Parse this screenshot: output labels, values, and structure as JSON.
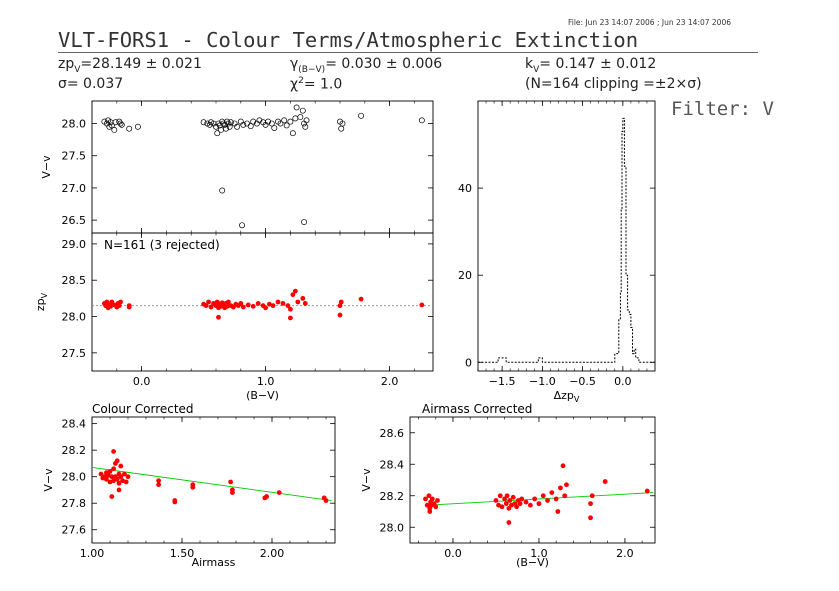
{
  "header": {
    "file_line": "File: Jun 23 14:07 2006 ; Jun 23 14:07 2006",
    "title": "VLT-FORS1 - Colour Terms/Atmospheric Extinction",
    "zp_label": "zp",
    "zp_sub": "V",
    "zp_value": "=28.149 ± 0.021",
    "sigma_text": "σ= 0.037",
    "gamma_label": "γ",
    "gamma_sub": "(B−V)",
    "gamma_value": "= 0.030 ± 0.006",
    "chi_label": "χ",
    "chi_sup": "2",
    "chi_value": "=   1.0",
    "k_label": "k",
    "k_sub": "V",
    "k_value": "= 0.147 ± 0.012",
    "clipping_text": "(N=164 clipping =±2×σ)",
    "filter_text": "Filter: V"
  },
  "colors": {
    "points": "#ff0000",
    "fit": "#00cc00",
    "zp_line": "#888888",
    "axes": "#000000"
  },
  "chart_data": [
    {
      "id": "panel-a",
      "type": "scatter",
      "ylabel": "V−v",
      "xlim": [
        -0.4,
        2.35
      ],
      "ylim": [
        26.3,
        28.35
      ],
      "yticks": [
        26.5,
        27.0,
        27.5,
        28.0
      ],
      "xticks": [
        0.0,
        1.0,
        2.0
      ],
      "marker": "hollow",
      "points": [
        [
          -0.3,
          28.03
        ],
        [
          -0.28,
          28.0
        ],
        [
          -0.27,
          28.05
        ],
        [
          -0.26,
          27.95
        ],
        [
          -0.25,
          28.02
        ],
        [
          -0.24,
          27.97
        ],
        [
          -0.22,
          27.9
        ],
        [
          -0.21,
          28.02
        ],
        [
          -0.18,
          28.03
        ],
        [
          -0.17,
          28.0
        ],
        [
          -0.16,
          27.98
        ],
        [
          -0.1,
          27.92
        ],
        [
          -0.03,
          27.95
        ],
        [
          0.5,
          28.02
        ],
        [
          0.53,
          28.0
        ],
        [
          0.55,
          27.98
        ],
        [
          0.56,
          28.02
        ],
        [
          0.58,
          28.0
        ],
        [
          0.6,
          27.95
        ],
        [
          0.61,
          27.85
        ],
        [
          0.62,
          28.0
        ],
        [
          0.63,
          27.97
        ],
        [
          0.64,
          27.9
        ],
        [
          0.65,
          28.03
        ],
        [
          0.66,
          28.0
        ],
        [
          0.67,
          27.98
        ],
        [
          0.68,
          27.92
        ],
        [
          0.69,
          28.03
        ],
        [
          0.7,
          28.0
        ],
        [
          0.71,
          27.95
        ],
        [
          0.72,
          28.02
        ],
        [
          0.75,
          28.0
        ],
        [
          0.77,
          27.95
        ],
        [
          0.8,
          28.03
        ],
        [
          0.82,
          27.98
        ],
        [
          0.85,
          28.0
        ],
        [
          0.88,
          27.96
        ],
        [
          0.9,
          28.03
        ],
        [
          0.93,
          28.0
        ],
        [
          0.95,
          28.05
        ],
        [
          0.98,
          28.02
        ],
        [
          1.0,
          27.98
        ],
        [
          1.02,
          28.03
        ],
        [
          1.05,
          28.0
        ],
        [
          1.07,
          27.93
        ],
        [
          1.1,
          28.03
        ],
        [
          1.12,
          28.0
        ],
        [
          1.15,
          28.05
        ],
        [
          1.17,
          27.97
        ],
        [
          1.2,
          28.03
        ],
        [
          1.22,
          27.85
        ],
        [
          1.24,
          28.08
        ],
        [
          1.28,
          28.1
        ],
        [
          1.31,
          28.0
        ],
        [
          1.32,
          27.95
        ],
        [
          1.33,
          28.05
        ],
        [
          1.6,
          28.03
        ],
        [
          1.61,
          27.92
        ],
        [
          1.62,
          28.0
        ],
        [
          1.77,
          28.12
        ],
        [
          2.26,
          28.05
        ],
        [
          1.3,
          28.2
        ],
        [
          1.25,
          28.25
        ],
        [
          0.65,
          26.96
        ],
        [
          0.81,
          26.42
        ],
        [
          1.31,
          26.47
        ]
      ]
    },
    {
      "id": "panel-b",
      "type": "scatter",
      "ylabel": "zp",
      "ylabel_sub": "V",
      "xlabel": "(B−V)",
      "annotation": "N=161 (3 rejected)",
      "xlim": [
        -0.4,
        2.35
      ],
      "ylim": [
        27.25,
        29.15
      ],
      "yticks": [
        27.5,
        28.0,
        28.5,
        29.0
      ],
      "xticks": [
        0.0,
        1.0,
        2.0
      ],
      "xticklabels": [
        "0.0",
        "1.0",
        "2.0"
      ],
      "zp_line": 28.149,
      "marker": "filled",
      "points": [
        [
          -0.3,
          28.18
        ],
        [
          -0.29,
          28.15
        ],
        [
          -0.28,
          28.2
        ],
        [
          -0.27,
          28.12
        ],
        [
          -0.26,
          28.17
        ],
        [
          -0.25,
          28.14
        ],
        [
          -0.24,
          28.2
        ],
        [
          -0.22,
          28.16
        ],
        [
          -0.2,
          28.13
        ],
        [
          -0.19,
          28.18
        ],
        [
          -0.18,
          28.15
        ],
        [
          -0.17,
          28.2
        ],
        [
          -0.1,
          28.15
        ],
        [
          0.5,
          28.17
        ],
        [
          0.52,
          28.15
        ],
        [
          0.54,
          28.2
        ],
        [
          0.56,
          28.13
        ],
        [
          0.58,
          28.18
        ],
        [
          0.6,
          28.15
        ],
        [
          0.61,
          28.2
        ],
        [
          0.62,
          28.12
        ],
        [
          0.63,
          28.17
        ],
        [
          0.64,
          28.14
        ],
        [
          0.65,
          28.19
        ],
        [
          0.66,
          28.15
        ],
        [
          0.67,
          28.12
        ],
        [
          0.68,
          28.18
        ],
        [
          0.69,
          28.14
        ],
        [
          0.7,
          28.2
        ],
        [
          0.72,
          28.15
        ],
        [
          0.74,
          28.13
        ],
        [
          0.76,
          28.17
        ],
        [
          0.78,
          28.15
        ],
        [
          0.8,
          28.18
        ],
        [
          0.82,
          28.13
        ],
        [
          0.86,
          28.16
        ],
        [
          0.9,
          28.14
        ],
        [
          0.94,
          28.18
        ],
        [
          0.98,
          28.15
        ],
        [
          1.0,
          28.12
        ],
        [
          1.03,
          28.17
        ],
        [
          1.06,
          28.15
        ],
        [
          1.1,
          28.2
        ],
        [
          1.14,
          28.18
        ],
        [
          1.18,
          28.15
        ],
        [
          1.2,
          28.1
        ],
        [
          1.22,
          28.3
        ],
        [
          1.24,
          28.35
        ],
        [
          1.26,
          28.2
        ],
        [
          1.3,
          28.25
        ],
        [
          1.32,
          28.18
        ],
        [
          1.6,
          28.15
        ],
        [
          1.61,
          28.2
        ],
        [
          1.77,
          28.24
        ],
        [
          2.26,
          28.16
        ],
        [
          1.2,
          27.98
        ],
        [
          0.62,
          27.99
        ],
        [
          1.6,
          28.02
        ],
        [
          -0.1,
          28.13
        ]
      ]
    },
    {
      "id": "panel-hist",
      "type": "bar",
      "xlabel": "Δzp",
      "xlabel_sub": "V",
      "xlim": [
        -1.8,
        0.4
      ],
      "ylim": [
        -2,
        60
      ],
      "yticks": [
        0,
        20,
        40
      ],
      "xticks": [
        -1.5,
        -1.0,
        -0.5,
        0.0
      ],
      "xticklabels": [
        "−1.5",
        "−1.0",
        "−0.5",
        "0.0"
      ],
      "histogram": [
        [
          -1.8,
          0
        ],
        [
          -1.55,
          1
        ],
        [
          -1.45,
          0
        ],
        [
          -1.05,
          1
        ],
        [
          -1.0,
          0
        ],
        [
          -0.1,
          2
        ],
        [
          -0.05,
          10
        ],
        [
          -0.03,
          16
        ],
        [
          -0.02,
          35
        ],
        [
          -0.01,
          53
        ],
        [
          0.0,
          56
        ],
        [
          0.02,
          45
        ],
        [
          0.04,
          20
        ],
        [
          0.06,
          12
        ],
        [
          0.08,
          11
        ],
        [
          0.1,
          8
        ],
        [
          0.12,
          2
        ],
        [
          0.14,
          3
        ],
        [
          0.16,
          1
        ],
        [
          0.2,
          0
        ]
      ]
    },
    {
      "id": "panel-c",
      "type": "scatter",
      "title": "Colour Corrected",
      "ylabel": "V−v",
      "xlabel": "Airmass",
      "xlim": [
        1.0,
        2.35
      ],
      "ylim": [
        27.5,
        28.45
      ],
      "yticks": [
        27.6,
        27.8,
        28.0,
        28.2,
        28.4
      ],
      "xticks": [
        1.0,
        1.5,
        2.0
      ],
      "xticklabels": [
        "1.00",
        "1.50",
        "2.00"
      ],
      "fit": [
        [
          1.0,
          28.07
        ],
        [
          2.33,
          27.82
        ]
      ],
      "marker": "filled",
      "points": [
        [
          1.05,
          28.02
        ],
        [
          1.06,
          27.99
        ],
        [
          1.07,
          28.0
        ],
        [
          1.08,
          28.03
        ],
        [
          1.08,
          27.98
        ],
        [
          1.09,
          28.01
        ],
        [
          1.1,
          27.96
        ],
        [
          1.1,
          28.04
        ],
        [
          1.11,
          28.0
        ],
        [
          1.12,
          27.97
        ],
        [
          1.12,
          28.06
        ],
        [
          1.13,
          28.0
        ],
        [
          1.13,
          28.1
        ],
        [
          1.14,
          27.98
        ],
        [
          1.14,
          28.12
        ],
        [
          1.15,
          28.02
        ],
        [
          1.15,
          27.95
        ],
        [
          1.16,
          28.0
        ],
        [
          1.16,
          28.08
        ],
        [
          1.17,
          27.97
        ],
        [
          1.18,
          28.02
        ],
        [
          1.19,
          27.96
        ],
        [
          1.2,
          28.0
        ],
        [
          1.12,
          28.19
        ],
        [
          1.11,
          27.85
        ],
        [
          1.15,
          27.9
        ],
        [
          1.37,
          27.97
        ],
        [
          1.37,
          27.94
        ],
        [
          1.46,
          27.82
        ],
        [
          1.46,
          27.81
        ],
        [
          1.56,
          27.94
        ],
        [
          1.56,
          27.92
        ],
        [
          1.77,
          27.96
        ],
        [
          1.78,
          27.9
        ],
        [
          1.78,
          27.88
        ],
        [
          1.96,
          27.84
        ],
        [
          1.97,
          27.85
        ],
        [
          2.04,
          27.88
        ],
        [
          2.29,
          27.84
        ],
        [
          2.3,
          27.82
        ]
      ]
    },
    {
      "id": "panel-d",
      "type": "scatter",
      "title": "Airmass Corrected",
      "ylabel": "V−v",
      "xlabel": "(B−V)",
      "xlim": [
        -0.5,
        2.35
      ],
      "ylim": [
        27.9,
        28.7
      ],
      "yticks": [
        28.0,
        28.2,
        28.4,
        28.6
      ],
      "xticks": [
        0.0,
        1.0,
        2.0
      ],
      "xticklabels": [
        "0.0",
        "1.0",
        "2.0"
      ],
      "fit": [
        [
          -0.3,
          28.14
        ],
        [
          2.33,
          28.22
        ]
      ],
      "marker": "filled",
      "points": [
        [
          -0.32,
          28.18
        ],
        [
          -0.3,
          28.14
        ],
        [
          -0.28,
          28.2
        ],
        [
          -0.27,
          28.12
        ],
        [
          -0.26,
          28.16
        ],
        [
          -0.25,
          28.14
        ],
        [
          -0.24,
          28.18
        ],
        [
          -0.22,
          28.15
        ],
        [
          -0.2,
          28.13
        ],
        [
          -0.18,
          28.17
        ],
        [
          -0.27,
          28.1
        ],
        [
          0.5,
          28.17
        ],
        [
          0.53,
          28.14
        ],
        [
          0.55,
          28.2
        ],
        [
          0.57,
          28.13
        ],
        [
          0.6,
          28.18
        ],
        [
          0.62,
          28.15
        ],
        [
          0.63,
          28.2
        ],
        [
          0.65,
          28.12
        ],
        [
          0.66,
          28.17
        ],
        [
          0.68,
          28.14
        ],
        [
          0.7,
          28.19
        ],
        [
          0.72,
          28.15
        ],
        [
          0.74,
          28.13
        ],
        [
          0.76,
          28.17
        ],
        [
          0.78,
          28.15
        ],
        [
          0.8,
          28.18
        ],
        [
          0.85,
          28.16
        ],
        [
          0.9,
          28.14
        ],
        [
          0.95,
          28.18
        ],
        [
          1.0,
          28.15
        ],
        [
          1.05,
          28.2
        ],
        [
          1.1,
          28.17
        ],
        [
          1.15,
          28.22
        ],
        [
          1.2,
          28.18
        ],
        [
          1.22,
          28.1
        ],
        [
          1.25,
          28.25
        ],
        [
          1.28,
          28.39
        ],
        [
          1.3,
          28.2
        ],
        [
          1.32,
          28.27
        ],
        [
          1.6,
          28.15
        ],
        [
          1.62,
          28.2
        ],
        [
          1.6,
          28.06
        ],
        [
          1.77,
          28.29
        ],
        [
          2.26,
          28.23
        ],
        [
          0.65,
          28.03
        ]
      ]
    }
  ]
}
